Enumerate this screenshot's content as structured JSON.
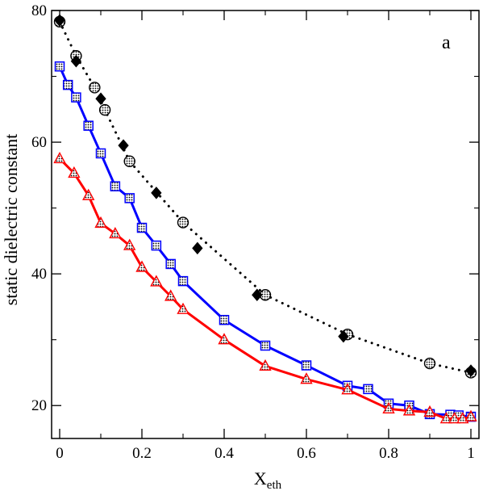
{
  "chart_data": {
    "type": "scatter",
    "panel_label": "a",
    "xlabel": {
      "main": "X",
      "sub": "eth"
    },
    "ylabel": "static dielectric constant",
    "xlim": [
      0,
      1
    ],
    "ylim": [
      15,
      80
    ],
    "xticks": [
      0,
      0.2,
      0.4,
      0.6,
      0.8,
      1
    ],
    "yticks": [
      20,
      40,
      60,
      80
    ],
    "xtick_labels": [
      "0",
      "0.2",
      "0.4",
      "0.6",
      "0.8",
      "1"
    ],
    "ytick_labels": [
      "20",
      "40",
      "60",
      "80"
    ],
    "grid": false,
    "series": [
      {
        "color": "#0000ff",
        "marker": "square",
        "line": "solid",
        "x": [
          0,
          0.02,
          0.04,
          0.07,
          0.1,
          0.135,
          0.17,
          0.2,
          0.235,
          0.27,
          0.3,
          0.4,
          0.5,
          0.6,
          0.7,
          0.75,
          0.8,
          0.85,
          0.9,
          0.95,
          0.97,
          1
        ],
        "y": [
          71.5,
          68.7,
          66.8,
          62.5,
          58.3,
          53.3,
          51.5,
          47.0,
          44.3,
          41.5,
          38.9,
          33.0,
          29.1,
          26.1,
          23.0,
          22.5,
          20.3,
          20.0,
          18.7,
          18.6,
          18.5,
          18.3
        ]
      },
      {
        "color": "#ff0000",
        "marker": "triangle",
        "line": "solid",
        "x": [
          0,
          0.035,
          0.07,
          0.1,
          0.135,
          0.17,
          0.2,
          0.235,
          0.27,
          0.3,
          0.4,
          0.5,
          0.6,
          0.7,
          0.8,
          0.85,
          0.9,
          0.94,
          0.96,
          0.98,
          1
        ],
        "y": [
          57.5,
          55.3,
          51.9,
          47.7,
          46.1,
          44.3,
          41.0,
          38.8,
          36.6,
          34.6,
          30.0,
          26.0,
          24.0,
          22.4,
          19.5,
          19.2,
          19.0,
          18.0,
          18.0,
          18.0,
          18.3
        ]
      },
      {
        "color": "#000000",
        "marker": "circle",
        "line": "dotted",
        "x": [
          0,
          0.04,
          0.085,
          0.11,
          0.17,
          0.3,
          0.5,
          0.7,
          0.9,
          1
        ],
        "y": [
          78.3,
          73.1,
          68.3,
          64.9,
          57.1,
          47.8,
          36.8,
          30.8,
          26.4,
          25.0
        ]
      },
      {
        "color": "#000000",
        "marker": "diamond",
        "line": "none",
        "x": [
          0,
          0.04,
          0.1,
          0.155,
          0.235,
          0.335,
          0.48,
          0.69,
          1
        ],
        "y": [
          78.5,
          72.3,
          66.6,
          59.5,
          52.3,
          43.9,
          36.8,
          30.5,
          25.3
        ]
      }
    ]
  }
}
